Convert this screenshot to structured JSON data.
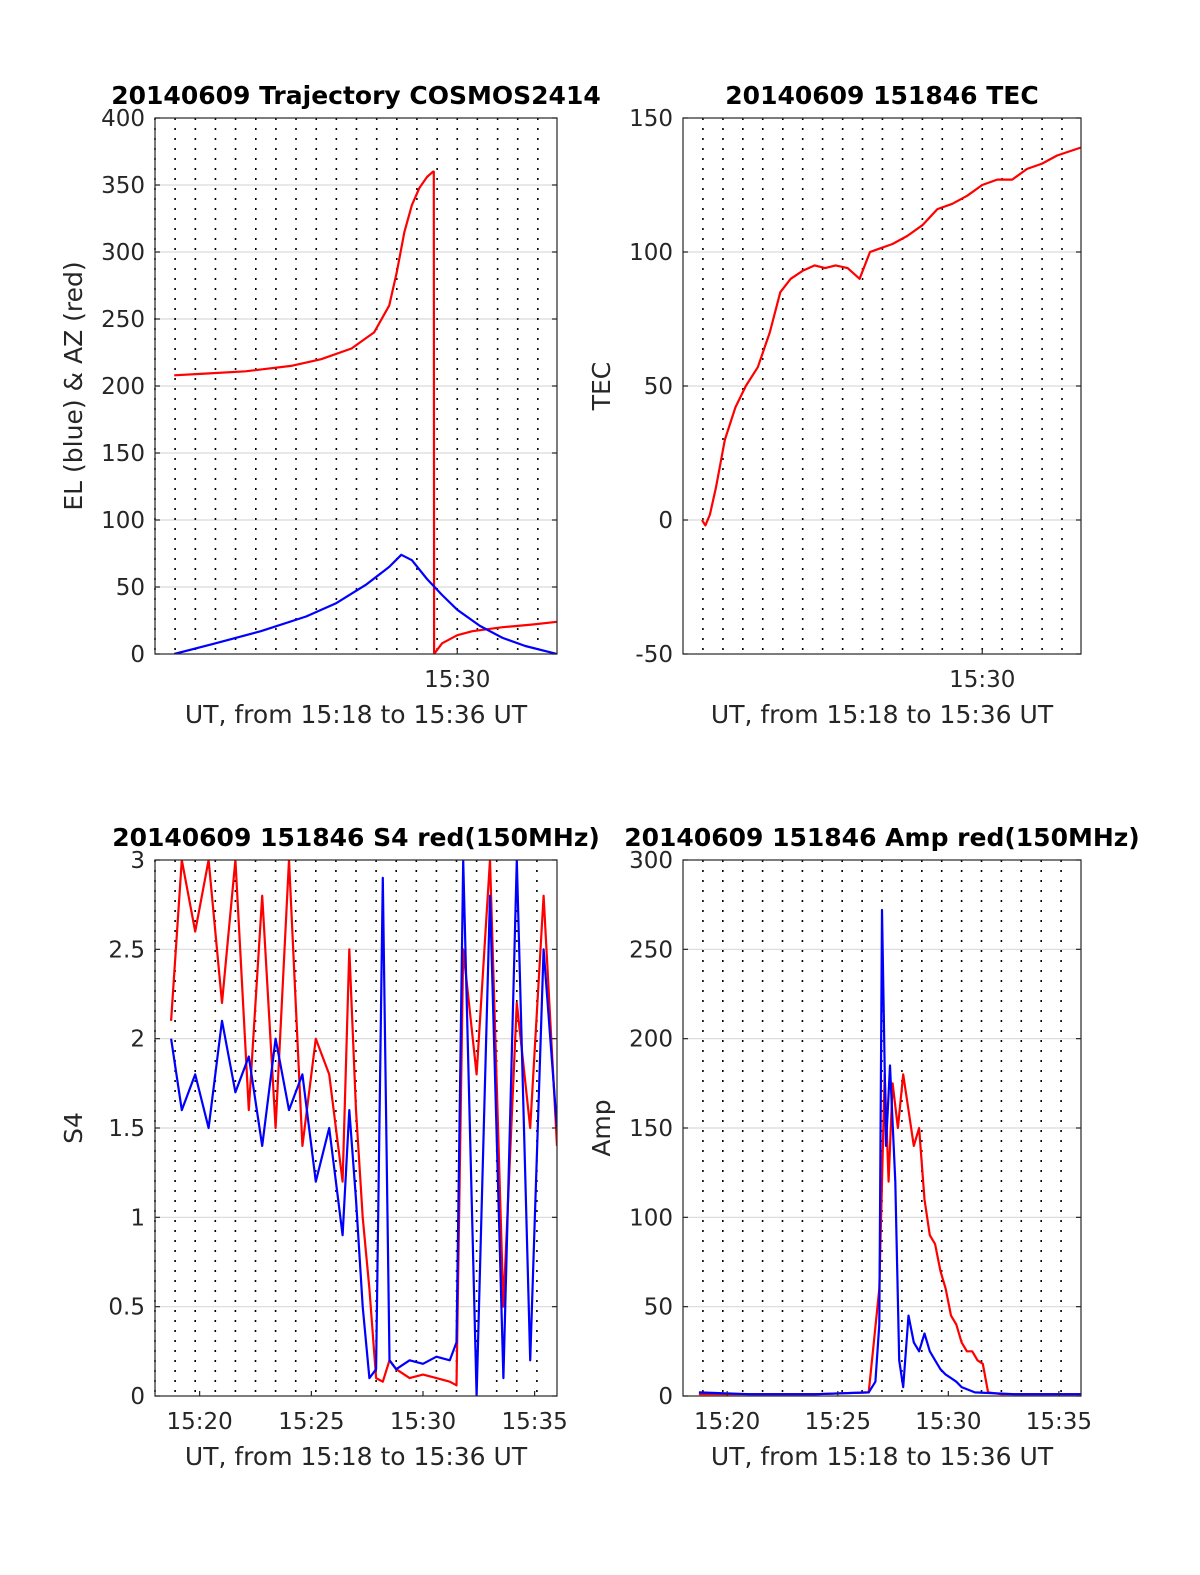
{
  "chart_data": [
    {
      "type": "line",
      "title": "20140609 Trajectory COSMOS2414",
      "xlabel": "UT, from 15:18 to 15:36 UT",
      "ylabel": "EL (blue) & AZ (red)",
      "xlim": [
        15.3,
        15.566
      ],
      "ylim": [
        0,
        400
      ],
      "yticks": [
        0,
        50,
        100,
        150,
        200,
        250,
        300,
        350,
        400
      ],
      "xticks": [
        {
          "value": 15.5,
          "label": "15:30"
        }
      ],
      "grid_x": [
        15.3,
        15.3133,
        15.3267,
        15.34,
        15.3533,
        15.3667,
        15.38,
        15.3933,
        15.4067,
        15.42,
        15.4333,
        15.4467,
        15.46,
        15.4733,
        15.4867,
        15.5,
        15.5133,
        15.5267,
        15.54,
        15.5533
      ],
      "series": [
        {
          "color": "#ff0000",
          "x": [
            15.3127,
            15.33,
            15.36,
            15.39,
            15.41,
            15.43,
            15.445,
            15.455,
            15.46,
            15.465,
            15.47,
            15.475,
            15.48,
            15.484,
            15.4845,
            15.4847,
            15.49,
            15.5,
            15.51,
            15.53,
            15.55,
            15.566
          ],
          "y": [
            208,
            209,
            211,
            215,
            220,
            228,
            240,
            260,
            285,
            315,
            335,
            348,
            356,
            360,
            360,
            0,
            8,
            14,
            17,
            20,
            22,
            24
          ]
        },
        {
          "color": "#0000ff",
          "x": [
            15.3127,
            15.34,
            15.37,
            15.4,
            15.42,
            15.44,
            15.455,
            15.463,
            15.47,
            15.48,
            15.49,
            15.5,
            15.515,
            15.53,
            15.545,
            15.566
          ],
          "y": [
            0,
            8,
            17,
            28,
            38,
            52,
            65,
            74,
            70,
            56,
            44,
            33,
            21,
            12,
            6,
            0
          ]
        }
      ]
    },
    {
      "type": "line",
      "title": "20140609 151846 TEC",
      "xlabel": "UT, from 15:18 to 15:36 UT",
      "ylabel": "TEC",
      "xlim": [
        15.3,
        15.566
      ],
      "ylim": [
        -50,
        150
      ],
      "yticks": [
        -50,
        0,
        50,
        100,
        150
      ],
      "xticks": [
        {
          "value": 15.5,
          "label": "15:30"
        }
      ],
      "grid_x": [
        15.3133,
        15.3267,
        15.34,
        15.3533,
        15.3667,
        15.38,
        15.3933,
        15.4067,
        15.42,
        15.4333,
        15.4467,
        15.46,
        15.4733,
        15.4867,
        15.5,
        15.5133,
        15.5267,
        15.54,
        15.5533
      ],
      "series": [
        {
          "color": "#ff0000",
          "x": [
            15.3127,
            15.315,
            15.318,
            15.322,
            15.328,
            15.335,
            15.342,
            15.35,
            15.358,
            15.365,
            15.372,
            15.38,
            15.388,
            15.395,
            15.402,
            15.41,
            15.418,
            15.425,
            15.43,
            15.44,
            15.45,
            15.46,
            15.47,
            15.48,
            15.49,
            15.5,
            15.51,
            15.52,
            15.53,
            15.54,
            15.55,
            15.566
          ],
          "y": [
            0,
            -2,
            2,
            12,
            30,
            42,
            50,
            57,
            70,
            85,
            90,
            93,
            95,
            94,
            95,
            94,
            90,
            100,
            101,
            103,
            106,
            110,
            116,
            118,
            121,
            125,
            127,
            127,
            131,
            133,
            136,
            139
          ]
        }
      ]
    },
    {
      "type": "line",
      "title": "20140609 151846 S4 red(150MHz)",
      "xlabel": "UT, from 15:18 to 15:36 UT",
      "ylabel": "S4",
      "xlim": [
        15.3,
        15.6
      ],
      "ylim": [
        0,
        3
      ],
      "yticks": [
        0,
        0.5,
        1,
        1.5,
        2,
        2.5,
        3
      ],
      "xticks": [
        {
          "value": 15.3333,
          "label": "15:20"
        },
        {
          "value": 15.4167,
          "label": "15:25"
        },
        {
          "value": 15.5,
          "label": "15:30"
        },
        {
          "value": 15.5833,
          "label": "15:35"
        }
      ],
      "grid_x": [
        15.3,
        15.315,
        15.33,
        15.345,
        15.36,
        15.375,
        15.39,
        15.405,
        15.42,
        15.435,
        15.45,
        15.465,
        15.48,
        15.495,
        15.51,
        15.525,
        15.54,
        15.555,
        15.57,
        15.585
      ],
      "series": [
        {
          "color": "#ff0000",
          "x": [
            15.312,
            15.32,
            15.33,
            15.34,
            15.35,
            15.36,
            15.37,
            15.38,
            15.39,
            15.4,
            15.41,
            15.42,
            15.43,
            15.44,
            15.445,
            15.45,
            15.455,
            15.46,
            15.465,
            15.47,
            15.475,
            15.48,
            15.49,
            15.5,
            15.51,
            15.52,
            15.525,
            15.53,
            15.54,
            15.55,
            15.56,
            15.57,
            15.58,
            15.59,
            15.6
          ],
          "y": [
            2.1,
            3.0,
            2.6,
            3.0,
            2.2,
            3.0,
            1.6,
            2.8,
            1.5,
            3.0,
            1.4,
            2.0,
            1.8,
            1.2,
            2.5,
            1.6,
            1.0,
            0.6,
            0.1,
            0.08,
            0.2,
            0.15,
            0.1,
            0.12,
            0.1,
            0.08,
            0.06,
            2.5,
            1.8,
            3.0,
            0.5,
            2.2,
            1.5,
            2.8,
            1.4
          ]
        },
        {
          "color": "#0000ff",
          "x": [
            15.312,
            15.32,
            15.33,
            15.34,
            15.35,
            15.36,
            15.37,
            15.38,
            15.39,
            15.4,
            15.41,
            15.42,
            15.43,
            15.44,
            15.445,
            15.45,
            15.455,
            15.46,
            15.465,
            15.47,
            15.475,
            15.48,
            15.49,
            15.5,
            15.51,
            15.52,
            15.525,
            15.53,
            15.54,
            15.55,
            15.56,
            15.57,
            15.58,
            15.59,
            15.6
          ],
          "y": [
            2.0,
            1.6,
            1.8,
            1.5,
            2.1,
            1.7,
            1.9,
            1.4,
            2.0,
            1.6,
            1.8,
            1.2,
            1.5,
            0.9,
            1.6,
            1.1,
            0.5,
            0.1,
            0.15,
            2.9,
            0.2,
            0.15,
            0.2,
            0.18,
            0.22,
            0.2,
            0.3,
            3.0,
            0.0,
            2.8,
            0.1,
            3.0,
            0.2,
            2.5,
            1.5
          ]
        }
      ]
    },
    {
      "type": "line",
      "title": "20140609 151846 Amp red(150MHz)",
      "xlabel": "UT, from 15:18 to 15:36 UT",
      "ylabel": "Amp",
      "xlim": [
        15.3,
        15.6
      ],
      "ylim": [
        0,
        300
      ],
      "yticks": [
        0,
        50,
        100,
        150,
        200,
        250,
        300
      ],
      "xticks": [
        {
          "value": 15.3333,
          "label": "15:20"
        },
        {
          "value": 15.4167,
          "label": "15:25"
        },
        {
          "value": 15.5,
          "label": "15:30"
        },
        {
          "value": 15.5833,
          "label": "15:35"
        }
      ],
      "grid_x": [
        15.315,
        15.33,
        15.345,
        15.36,
        15.375,
        15.39,
        15.405,
        15.42,
        15.435,
        15.45,
        15.465,
        15.48,
        15.495,
        15.51,
        15.525,
        15.54,
        15.555,
        15.57,
        15.585
      ],
      "series": [
        {
          "color": "#ff0000",
          "x": [
            15.312,
            15.35,
            15.4,
            15.44,
            15.448,
            15.452,
            15.455,
            15.458,
            15.462,
            15.466,
            15.47,
            15.474,
            15.478,
            15.482,
            15.486,
            15.49,
            15.494,
            15.498,
            15.502,
            15.506,
            15.51,
            15.514,
            15.518,
            15.522,
            15.526,
            15.53,
            15.54,
            15.56,
            15.6
          ],
          "y": [
            1,
            1,
            1,
            2,
            60,
            180,
            120,
            175,
            150,
            180,
            160,
            140,
            150,
            110,
            90,
            85,
            70,
            60,
            45,
            40,
            30,
            25,
            25,
            20,
            18,
            2,
            1,
            1,
            1
          ]
        },
        {
          "color": "#0000ff",
          "x": [
            15.312,
            15.35,
            15.4,
            15.44,
            15.445,
            15.448,
            15.45,
            15.453,
            15.456,
            15.46,
            15.463,
            15.466,
            15.47,
            15.474,
            15.478,
            15.482,
            15.486,
            15.49,
            15.494,
            15.498,
            15.502,
            15.506,
            15.51,
            15.52,
            15.55,
            15.6
          ],
          "y": [
            2,
            1,
            1,
            2,
            8,
            40,
            272,
            140,
            185,
            120,
            20,
            5,
            45,
            30,
            25,
            35,
            25,
            20,
            15,
            12,
            10,
            8,
            5,
            2,
            1,
            1
          ]
        }
      ]
    }
  ]
}
